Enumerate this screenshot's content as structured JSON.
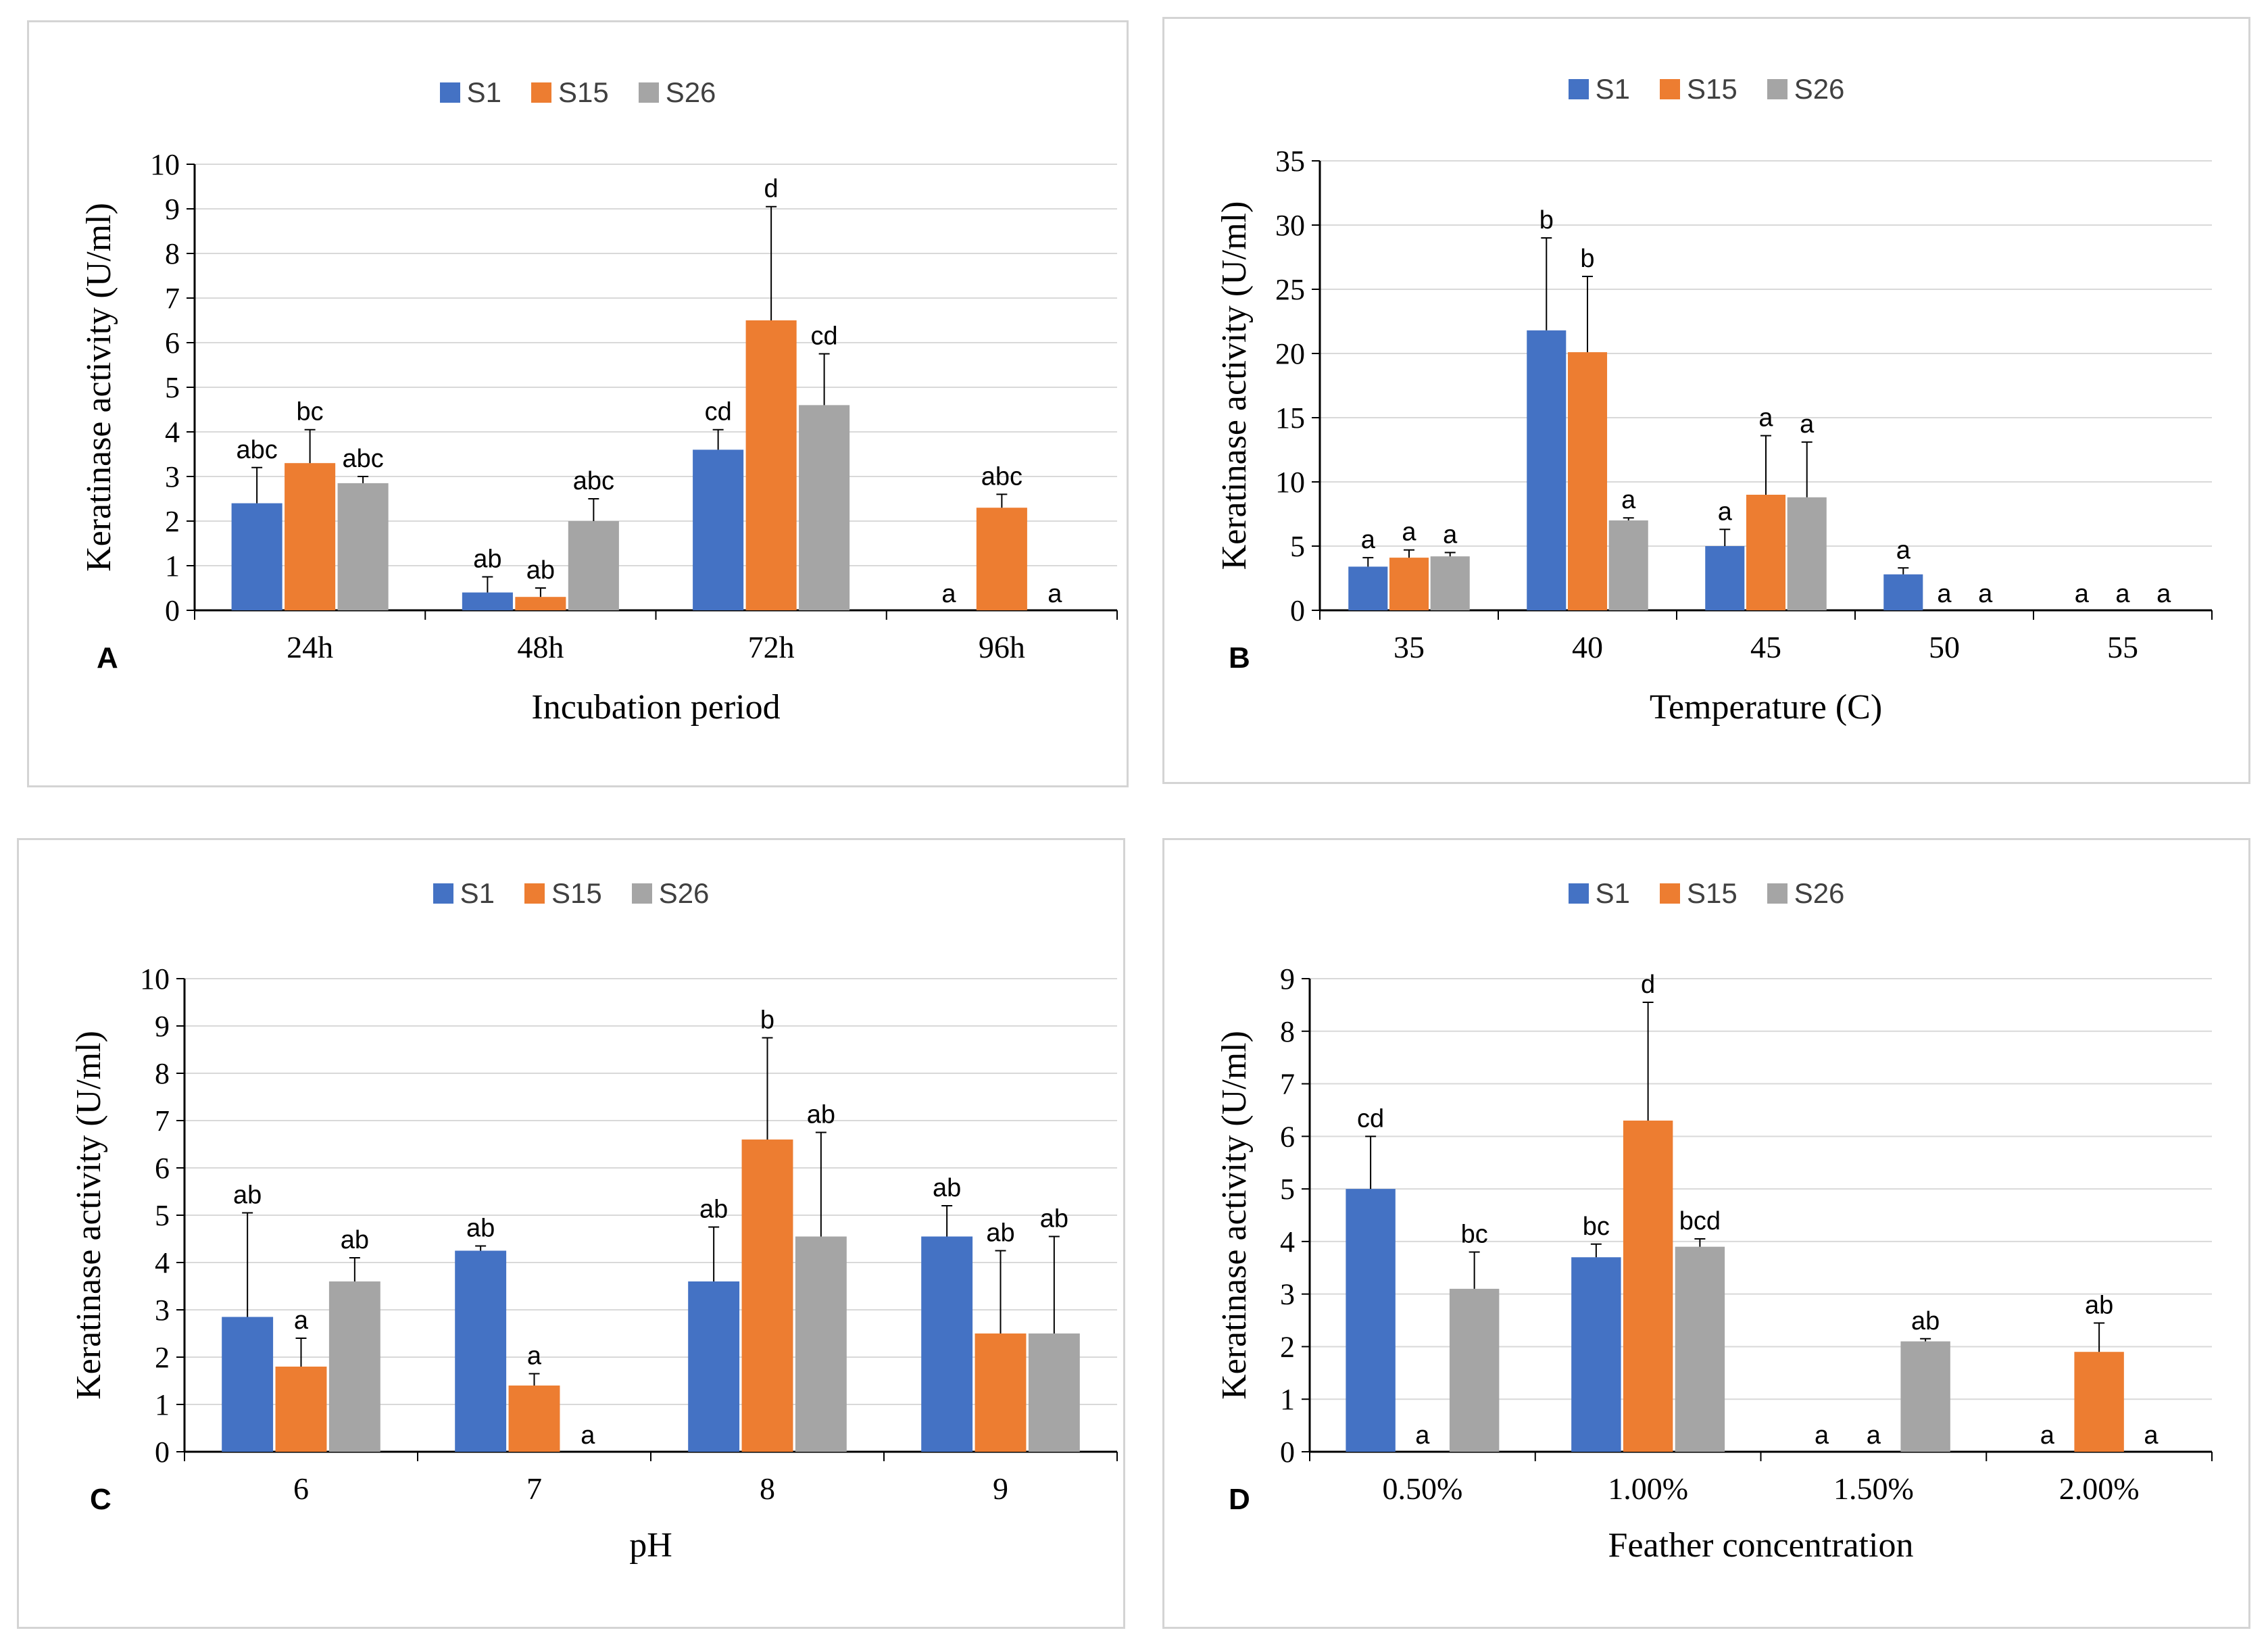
{
  "legend": {
    "series": [
      "S1",
      "S15",
      "S26"
    ]
  },
  "colors": {
    "S1": "#4472c4",
    "S15": "#ed7d31",
    "S26": "#a5a5a5",
    "grid": "#d9d9d9",
    "axis": "#000000"
  },
  "chart_data": [
    {
      "panel": "A",
      "type": "bar",
      "xlabel": "Incubation period",
      "ylabel": "Keratinase activity (U/ml)",
      "ylim": [
        0,
        10
      ],
      "ytick_step": 1,
      "categories": [
        "24h",
        "48h",
        "72h",
        "96h"
      ],
      "series": [
        {
          "name": "S1",
          "values": [
            2.4,
            0.4,
            3.6,
            0
          ],
          "errors": [
            0.8,
            0.35,
            0.45,
            0
          ],
          "labels": [
            "abc",
            "ab",
            "cd",
            "a"
          ]
        },
        {
          "name": "S15",
          "values": [
            3.3,
            0.3,
            6.5,
            2.3
          ],
          "errors": [
            0.75,
            0.2,
            2.55,
            0.3
          ],
          "labels": [
            "bc",
            "ab",
            "d",
            "abc"
          ]
        },
        {
          "name": "S26",
          "values": [
            2.85,
            2.0,
            4.6,
            0
          ],
          "errors": [
            0.15,
            0.5,
            1.15,
            0
          ],
          "labels": [
            "abc",
            "abc",
            "cd",
            "a"
          ]
        }
      ]
    },
    {
      "panel": "B",
      "type": "bar",
      "xlabel": "Temperature (C)",
      "ylabel": "Keratinase activity (U/ml)",
      "ylim": [
        0,
        35
      ],
      "ytick_step": 5,
      "categories": [
        "35",
        "40",
        "45",
        "50",
        "55"
      ],
      "series": [
        {
          "name": "S1",
          "values": [
            3.4,
            21.8,
            5.0,
            2.8,
            0
          ],
          "errors": [
            0.7,
            7.2,
            1.3,
            0.5,
            0
          ],
          "labels": [
            "a",
            "b",
            "a",
            "a",
            "a"
          ]
        },
        {
          "name": "S15",
          "values": [
            4.1,
            20.1,
            9.0,
            0,
            0
          ],
          "errors": [
            0.6,
            5.9,
            4.6,
            0,
            0
          ],
          "labels": [
            "a",
            "b",
            "a",
            "a",
            "a"
          ]
        },
        {
          "name": "S26",
          "values": [
            4.2,
            7.0,
            8.8,
            0,
            0
          ],
          "errors": [
            0.3,
            0.2,
            4.3,
            0,
            0
          ],
          "labels": [
            "a",
            "a",
            "a",
            "a",
            "a"
          ]
        }
      ]
    },
    {
      "panel": "C",
      "type": "bar",
      "xlabel": "pH",
      "ylabel": "Keratinase activity (U/ml)",
      "ylim": [
        0,
        10
      ],
      "ytick_step": 1,
      "categories": [
        "6",
        "7",
        "8",
        "9"
      ],
      "series": [
        {
          "name": "S1",
          "values": [
            2.85,
            4.25,
            3.6,
            4.55
          ],
          "errors": [
            2.2,
            0.1,
            1.15,
            0.65
          ],
          "labels": [
            "ab",
            "ab",
            "ab",
            "ab"
          ]
        },
        {
          "name": "S15",
          "values": [
            1.8,
            1.4,
            6.6,
            2.5
          ],
          "errors": [
            0.6,
            0.25,
            2.15,
            1.75
          ],
          "labels": [
            "a",
            "a",
            "b",
            "ab"
          ]
        },
        {
          "name": "S26",
          "values": [
            3.6,
            0,
            4.55,
            2.5
          ],
          "errors": [
            0.5,
            0,
            2.2,
            2.05
          ],
          "labels": [
            "ab",
            "a",
            "ab",
            "ab"
          ]
        }
      ]
    },
    {
      "panel": "D",
      "type": "bar",
      "xlabel": "Feather concentration",
      "ylabel": "Keratinase activity (U/ml)",
      "ylim": [
        0,
        9
      ],
      "ytick_step": 1,
      "categories": [
        "0.50%",
        "1.00%",
        "1.50%",
        "2.00%"
      ],
      "series": [
        {
          "name": "S1",
          "values": [
            5.0,
            3.7,
            0,
            0
          ],
          "errors": [
            1.0,
            0.25,
            0,
            0
          ],
          "labels": [
            "cd",
            "bc",
            "a",
            "a"
          ]
        },
        {
          "name": "S15",
          "values": [
            0,
            6.3,
            0,
            1.9
          ],
          "errors": [
            0,
            2.25,
            0,
            0.55
          ],
          "labels": [
            "a",
            "d",
            "a",
            "ab"
          ]
        },
        {
          "name": "S26",
          "values": [
            3.1,
            3.9,
            2.1,
            0
          ],
          "errors": [
            0.7,
            0.15,
            0.05,
            0
          ],
          "labels": [
            "bc",
            "bcd",
            "ab",
            "a"
          ]
        }
      ]
    }
  ]
}
